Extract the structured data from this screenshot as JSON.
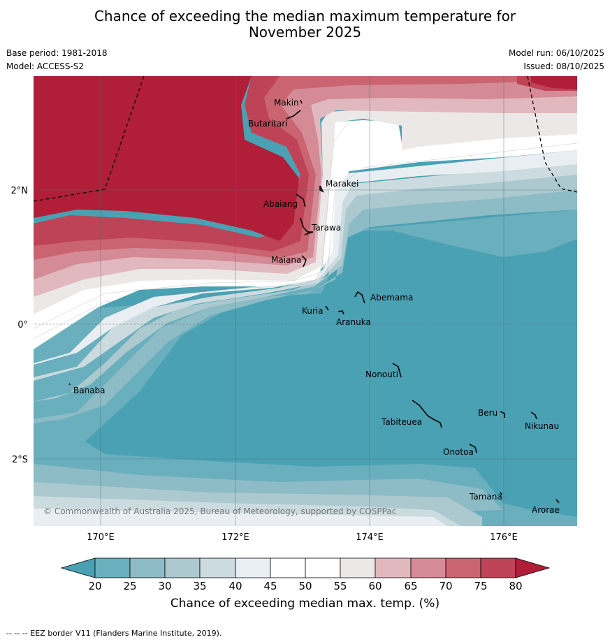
{
  "title": {
    "line1": "Chance of exceeding the median maximum temperature for",
    "line2": "November 2025"
  },
  "meta": {
    "base_period": "Base period: 1981-2018",
    "model": "Model: ACCESS-S2",
    "model_run": "Model run: 06/10/2025",
    "issued": "Issued: 08/10/2025"
  },
  "map": {
    "lon_labels": [
      "170°E",
      "172°E",
      "174°E",
      "176°E"
    ],
    "lat_labels": [
      "2°N",
      "0°",
      "2°S"
    ],
    "copyright": "© Commonwealth of Australia 2025, Bureau of Meteorology, supported by COSPPac",
    "places": [
      "Makin",
      "Butaritari",
      "Marakei",
      "Abaiang",
      "Tarawa",
      "Maiana",
      "Abemama",
      "Kuria",
      "Aranuka",
      "Nonouti",
      "Banaba",
      "Beru",
      "Nikunau",
      "Tabiteuea",
      "Onotoa",
      "Tamana",
      "Arorae"
    ]
  },
  "colorbar": {
    "ticks": [
      "20",
      "25",
      "30",
      "35",
      "40",
      "45",
      "50",
      "55",
      "60",
      "65",
      "70",
      "75",
      "80"
    ],
    "colors": {
      "below20": "#4aa1b3",
      "c20": "#6aafbd",
      "c25": "#8dbbc6",
      "c30": "#abc9cf",
      "c35": "#ccdbdf",
      "c40": "#e8eef1",
      "c45": "#ffffff",
      "c50": "#ffffff",
      "c55": "#ece8e8",
      "c60": "#e2b8bf",
      "c65": "#d48b96",
      "c70": "#c96470",
      "c75": "#be4356",
      "above80": "#b01e38"
    },
    "title": "Chance of exceeding median max. temp. (%)"
  },
  "footnote": "--  --  -- EEZ border V11 (Flanders Marine Institute, 2019)."
}
